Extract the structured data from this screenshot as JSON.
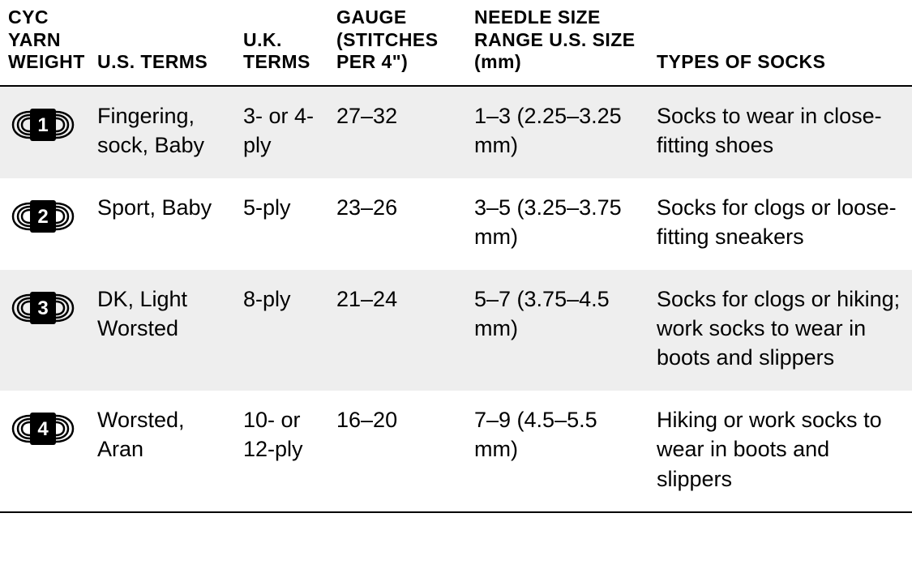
{
  "table": {
    "columns": [
      {
        "key": "icon",
        "label": "CYC YARN WEIGHT"
      },
      {
        "key": "us",
        "label": "U.S. TERMS"
      },
      {
        "key": "uk",
        "label": "U.K. TERMS"
      },
      {
        "key": "gauge",
        "label": "GAUGE (STITCHES PER 4\")"
      },
      {
        "key": "needle",
        "label": "NEEDLE SIZE RANGE U.S. SIZE (mm)"
      },
      {
        "key": "types",
        "label": "TYPES OF SOCKS"
      }
    ],
    "rows": [
      {
        "weight_number": "1",
        "us": "Fingering, sock, Baby",
        "uk": "3- or 4-ply",
        "gauge": "27–32",
        "needle": "1–3 (2.25–3.25 mm)",
        "types": "Socks to wear in close-fitting shoes",
        "shaded": true
      },
      {
        "weight_number": "2",
        "us": "Sport, Baby",
        "uk": "5-ply",
        "gauge": "23–26",
        "needle": "3–5 (3.25–3.75 mm)",
        "types": "Socks for clogs or loose-fitting sneakers",
        "shaded": false
      },
      {
        "weight_number": "3",
        "us": "DK, Light Worsted",
        "uk": "8-ply",
        "gauge": "21–24",
        "needle": "5–7 (3.75–4.5 mm)",
        "types": "Socks for clogs or hiking; work socks to wear in boots and slippers",
        "shaded": true
      },
      {
        "weight_number": "4",
        "us": "Worsted, Aran",
        "uk": "10- or 12-ply",
        "gauge": "16–20",
        "needle": "7–9 (4.5–5.5 mm)",
        "types": "Hiking or work socks to wear in boots and slippers",
        "shaded": false
      }
    ],
    "style": {
      "header_bg": "#ffffff",
      "row_shade": "#eeeeee",
      "border_color": "#000000",
      "icon_fill": "#000000",
      "icon_text_color": "#ffffff",
      "body_font_size": 27,
      "header_font_size": 23
    }
  }
}
